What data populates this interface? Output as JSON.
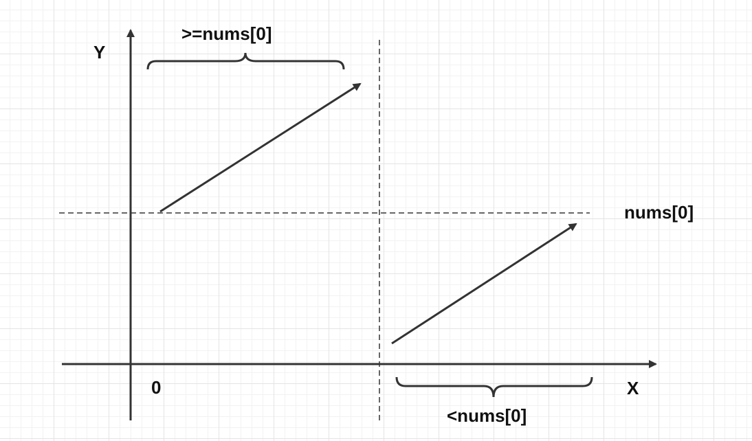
{
  "axes": {
    "x_label": "X",
    "y_label": "Y",
    "origin_label": "0"
  },
  "labels": {
    "reference_value": "nums[0]",
    "left_range": ">=nums[0]",
    "right_range": "<nums[0]"
  },
  "colors": {
    "stroke": "#333333",
    "text": "#111111",
    "grid_major": "#e4e4e4",
    "grid_minor": "#f2f2f2"
  }
}
